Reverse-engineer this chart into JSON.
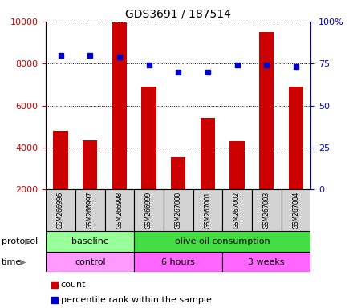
{
  "title": "GDS3691 / 187514",
  "samples": [
    "GSM266996",
    "GSM266997",
    "GSM266998",
    "GSM266999",
    "GSM267000",
    "GSM267001",
    "GSM267002",
    "GSM267003",
    "GSM267004"
  ],
  "counts": [
    4800,
    4350,
    9950,
    6900,
    3550,
    5400,
    4300,
    9500,
    6900
  ],
  "percentile_ranks": [
    80,
    80,
    79,
    74,
    70,
    70,
    74,
    74,
    73
  ],
  "bar_color": "#cc0000",
  "dot_color": "#0000cc",
  "ylim_left": [
    2000,
    10000
  ],
  "ylim_right": [
    0,
    100
  ],
  "yticks_left": [
    2000,
    4000,
    6000,
    8000,
    10000
  ],
  "yticks_right": [
    0,
    25,
    50,
    75,
    100
  ],
  "ytick_right_labels": [
    "0",
    "25",
    "50",
    "75",
    "100%"
  ],
  "protocol_labels": [
    {
      "text": "baseline",
      "start": 0,
      "end": 3,
      "color": "#99ff99"
    },
    {
      "text": "olive oil consumption",
      "start": 3,
      "end": 9,
      "color": "#44dd44"
    }
  ],
  "time_labels": [
    {
      "text": "control",
      "start": 0,
      "end": 3,
      "color": "#ff99ff"
    },
    {
      "text": "6 hours",
      "start": 3,
      "end": 6,
      "color": "#ff66ff"
    },
    {
      "text": "3 weeks",
      "start": 6,
      "end": 9,
      "color": "#ff66ff"
    }
  ],
  "legend_count_label": "count",
  "legend_pct_label": "percentile rank within the sample",
  "protocol_row_label": "protocol",
  "time_row_label": "time",
  "label_bg_color": "#d3d3d3"
}
